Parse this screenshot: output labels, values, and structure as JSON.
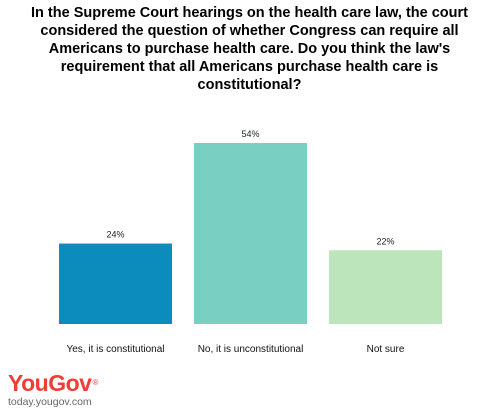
{
  "chart_data": {
    "type": "bar",
    "title": "In the Supreme Court hearings on the health care law, the court considered the question of whether Congress can require all Americans to purchase health care. Do you think the law's requirement that all Americans purchase health care is constitutional?",
    "categories": [
      "Yes, it is constitutional",
      "No, it is unconstitutional",
      "Not sure"
    ],
    "values": [
      24,
      54,
      22
    ],
    "value_labels": [
      "24%",
      "54%",
      "22%"
    ],
    "bar_colors": [
      "#0c8bbd",
      "#79cfc2",
      "#bce5bc"
    ],
    "ylim": [
      0,
      60
    ],
    "grid": false,
    "legend": "none"
  },
  "brand": {
    "logo": "YouGov",
    "registered": "®",
    "url": "today.yougov.com",
    "color": "#ef3e36"
  }
}
